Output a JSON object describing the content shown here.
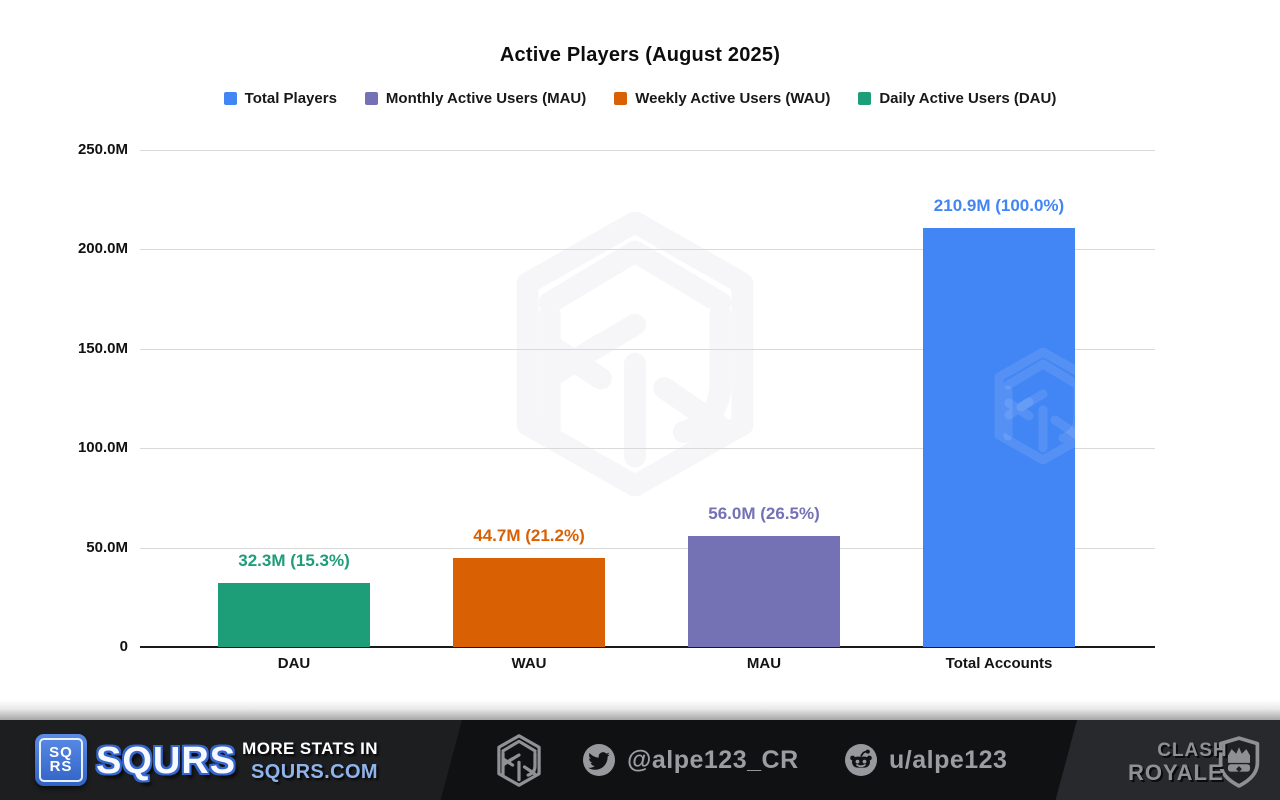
{
  "chart_data": {
    "type": "bar",
    "title": "Active Players (August 2025)",
    "categories": [
      "DAU",
      "WAU",
      "MAU",
      "Total Accounts"
    ],
    "values_millions": [
      32.3,
      44.7,
      56.0,
      210.9
    ],
    "percent_of_total": [
      15.3,
      21.2,
      26.5,
      100.0
    ],
    "bar_labels": [
      "32.3M (15.3%)",
      "44.7M (21.2%)",
      "56.0M (26.5%)",
      "210.9M (100.0%)"
    ],
    "bar_colors": [
      "#1d9d78",
      "#d96104",
      "#7472b4",
      "#4285f4"
    ],
    "legend": [
      {
        "label": "Total Players",
        "color": "#4285f4"
      },
      {
        "label": "Monthly Active Users (MAU)",
        "color": "#7472b4"
      },
      {
        "label": "Weekly Active Users (WAU)",
        "color": "#d96104"
      },
      {
        "label": "Daily Active Users (DAU)",
        "color": "#1d9d78"
      }
    ],
    "legend_position": "top",
    "grid": true,
    "ylim": [
      0,
      250
    ],
    "ylabel": "",
    "xlabel": "",
    "y_ticks": [
      {
        "value": 250,
        "label": "250.0M"
      },
      {
        "value": 200,
        "label": "200.0M"
      },
      {
        "value": 150,
        "label": "150.0M"
      },
      {
        "value": 100,
        "label": "100.0M"
      },
      {
        "value": 50,
        "label": "50.0M"
      },
      {
        "value": 0,
        "label": "0"
      }
    ]
  },
  "footer": {
    "brand": {
      "logo_top": "SQ",
      "logo_bottom": "RS",
      "name": "SQURS"
    },
    "promo": {
      "line1": "MORE STATS IN",
      "line2": "SQURS.COM",
      "accent_color": "#8fb4ea"
    },
    "twitter": {
      "handle": "@alpe123_CR"
    },
    "reddit": {
      "handle": "u/alpe123"
    },
    "game": {
      "line1": "CLASH",
      "line2": "ROYALE"
    }
  }
}
